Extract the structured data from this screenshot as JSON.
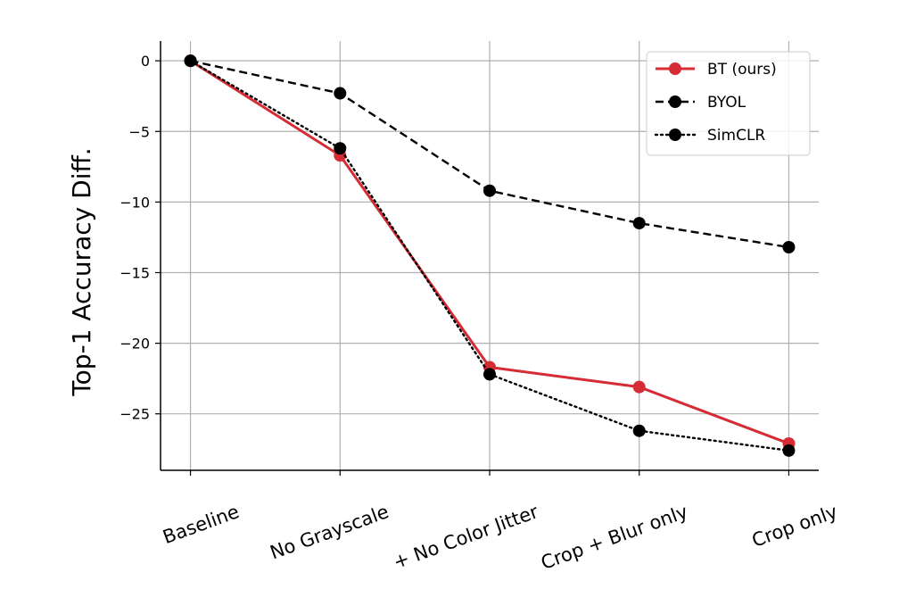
{
  "chart_data": {
    "type": "line",
    "title": "",
    "xlabel": "",
    "ylabel": "Top-1 Accuracy Diff.",
    "categories": [
      "Baseline",
      "No Grayscale",
      "+ No Color Jitter",
      "Crop + Blur only",
      "Crop only"
    ],
    "yticks": [
      0,
      -5,
      -10,
      -15,
      -20,
      -25
    ],
    "ytick_labels": [
      "0",
      "−5",
      "−10",
      "−15",
      "−20",
      "−25"
    ],
    "ylim": [
      -29,
      1.4
    ],
    "grid": true,
    "legend_position": "top-right",
    "series": [
      {
        "name": "BT (ours)",
        "values": [
          0,
          -6.7,
          -21.7,
          -23.1,
          -27.1
        ],
        "color": "#d62c35",
        "style": "solid"
      },
      {
        "name": "BYOL",
        "values": [
          0,
          -2.3,
          -9.2,
          -11.5,
          -13.2
        ],
        "color": "#000000",
        "style": "dashed"
      },
      {
        "name": "SimCLR",
        "values": [
          0,
          -6.2,
          -22.2,
          -26.2,
          -27.6
        ],
        "color": "#000000",
        "style": "dotted"
      }
    ]
  }
}
